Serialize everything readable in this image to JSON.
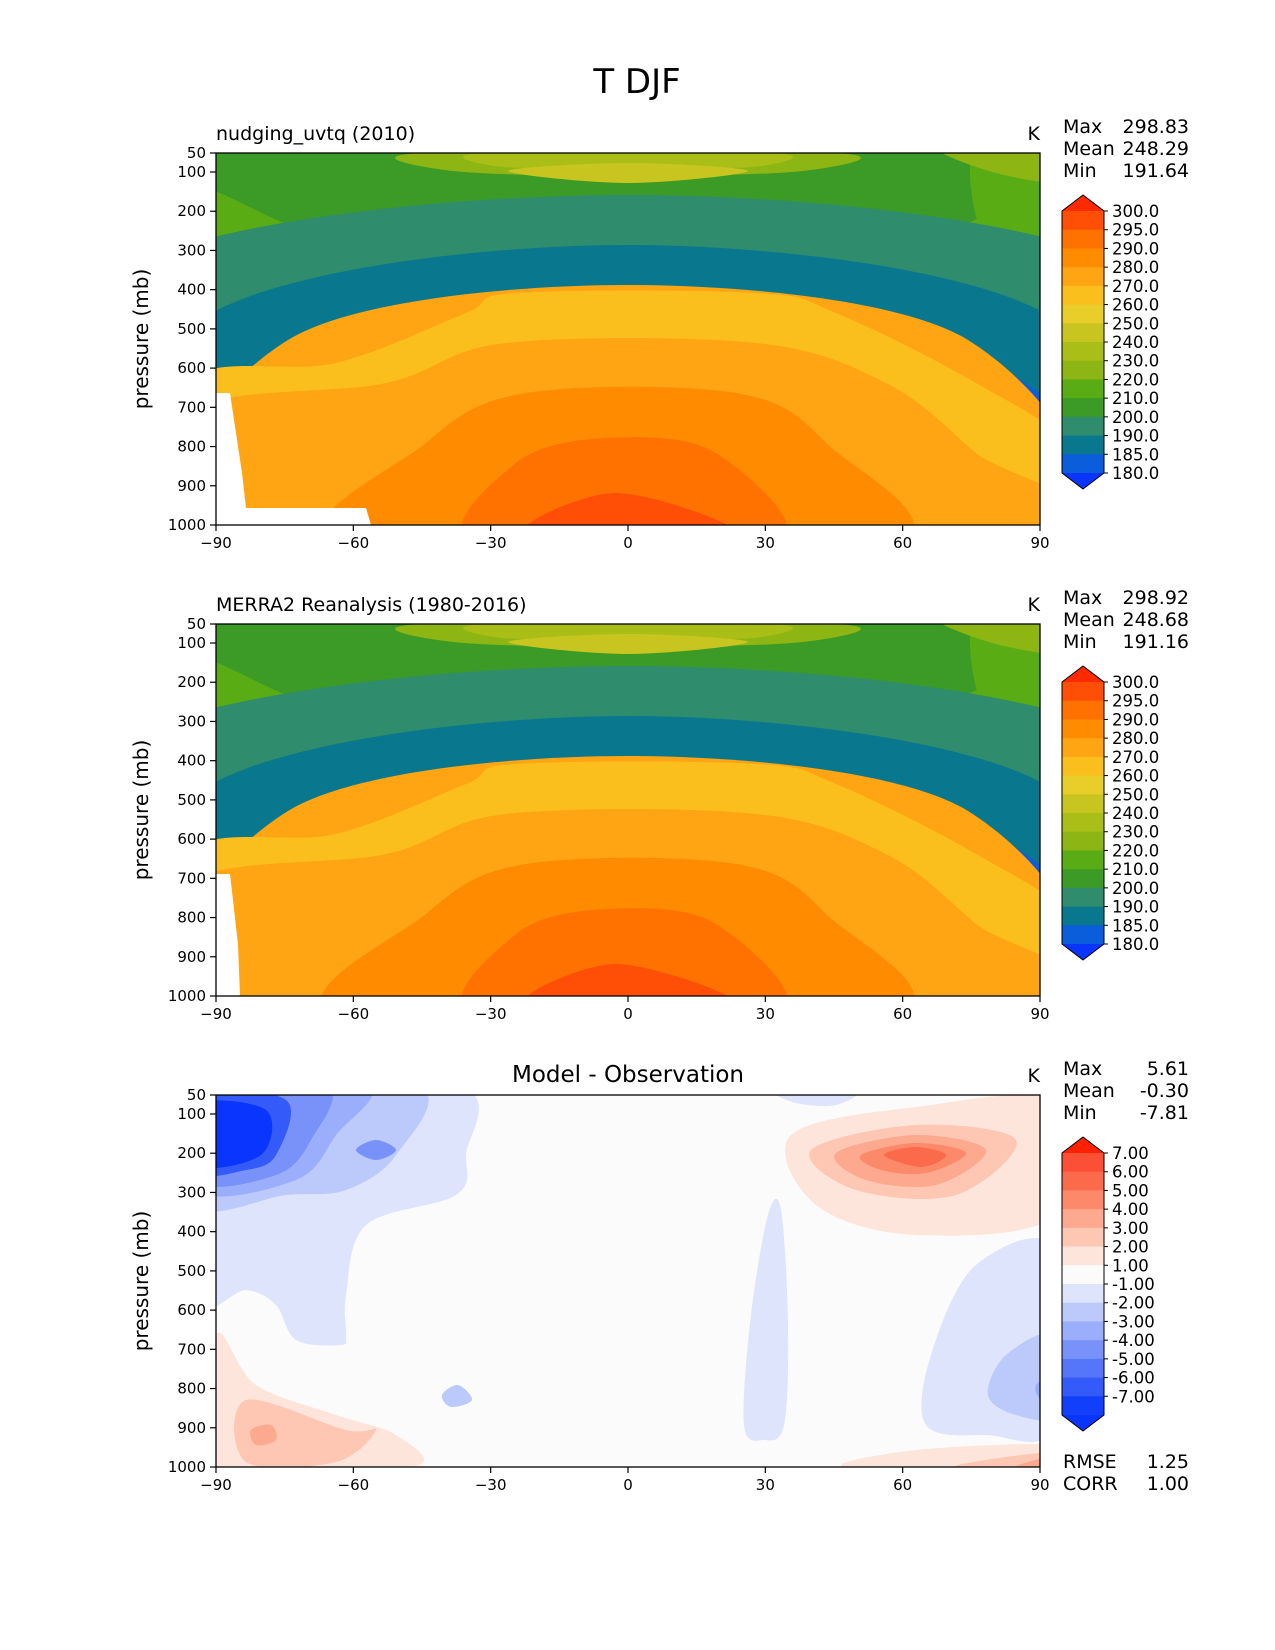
{
  "figure": {
    "title": "T DJF"
  },
  "chart_data": [
    {
      "type": "contour",
      "title": "nudging_uvtq (2010)",
      "units": "K",
      "xlabel": "",
      "ylabel": "pressure (mb)",
      "x_ticks": [
        "−90",
        "−60",
        "−30",
        "0",
        "30",
        "60",
        "90"
      ],
      "y_ticks": [
        "50",
        "100",
        "200",
        "300",
        "400",
        "500",
        "600",
        "700",
        "800",
        "900",
        "1000"
      ],
      "xlim": [
        -90,
        90
      ],
      "ylim": [
        1000,
        50
      ],
      "stats": [
        {
          "label": "Max",
          "value": "298.83"
        },
        {
          "label": "Mean",
          "value": "248.29"
        },
        {
          "label": "Min",
          "value": "191.64"
        }
      ],
      "colorbar": {
        "labels": [
          "300.0",
          "295.0",
          "290.0",
          "280.0",
          "270.0",
          "260.0",
          "250.0",
          "240.0",
          "230.0",
          "220.0",
          "210.0",
          "200.0",
          "190.0",
          "185.0",
          "180.0"
        ],
        "colors": [
          "#ff2a00",
          "#ff4e05",
          "#ff7200",
          "#ff8c00",
          "#ffa413",
          "#fbbf1d",
          "#e9cd28",
          "#c9c520",
          "#a9be16",
          "#8db514",
          "#5aac14",
          "#3b9b26",
          "#2f8d6e",
          "#09788f",
          "#0b5edb",
          "#0a35ff"
        ]
      }
    },
    {
      "type": "contour",
      "title": "MERRA2 Reanalysis (1980-2016)",
      "units": "K",
      "xlabel": "",
      "ylabel": "pressure (mb)",
      "x_ticks": [
        "−90",
        "−60",
        "−30",
        "0",
        "30",
        "60",
        "90"
      ],
      "y_ticks": [
        "50",
        "100",
        "200",
        "300",
        "400",
        "500",
        "600",
        "700",
        "800",
        "900",
        "1000"
      ],
      "xlim": [
        -90,
        90
      ],
      "ylim": [
        1000,
        50
      ],
      "stats": [
        {
          "label": "Max",
          "value": "298.92"
        },
        {
          "label": "Mean",
          "value": "248.68"
        },
        {
          "label": "Min",
          "value": "191.16"
        }
      ],
      "colorbar": {
        "labels": [
          "300.0",
          "295.0",
          "290.0",
          "280.0",
          "270.0",
          "260.0",
          "250.0",
          "240.0",
          "230.0",
          "220.0",
          "210.0",
          "200.0",
          "190.0",
          "185.0",
          "180.0"
        ],
        "colors": [
          "#ff2a00",
          "#ff4e05",
          "#ff7200",
          "#ff8c00",
          "#ffa413",
          "#fbbf1d",
          "#e9cd28",
          "#c9c520",
          "#a9be16",
          "#8db514",
          "#5aac14",
          "#3b9b26",
          "#2f8d6e",
          "#09788f",
          "#0b5edb",
          "#0a35ff"
        ]
      }
    },
    {
      "type": "contour",
      "title": "Model - Observation",
      "units": "K",
      "xlabel": "",
      "ylabel": "pressure (mb)",
      "x_ticks": [
        "−90",
        "−60",
        "−30",
        "0",
        "30",
        "60",
        "90"
      ],
      "y_ticks": [
        "50",
        "100",
        "200",
        "300",
        "400",
        "500",
        "600",
        "700",
        "800",
        "900",
        "1000"
      ],
      "xlim": [
        -90,
        90
      ],
      "ylim": [
        1000,
        50
      ],
      "stats": [
        {
          "label": "Max",
          "value": "5.61"
        },
        {
          "label": "Mean",
          "value": "-0.30"
        },
        {
          "label": "Min",
          "value": "-7.81"
        }
      ],
      "extra_stats": [
        {
          "label": "RMSE",
          "value": "1.25"
        },
        {
          "label": "CORR",
          "value": "1.00"
        }
      ],
      "colorbar": {
        "labels": [
          "7.00",
          "6.00",
          "5.00",
          "4.00",
          "3.00",
          "2.00",
          "1.00",
          "-1.00",
          "-2.00",
          "-3.00",
          "-4.00",
          "-5.00",
          "-6.00",
          "-7.00"
        ],
        "colors": [
          "#ff2200",
          "#fb4f36",
          "#fb6a4a",
          "#fc8a6a",
          "#fca98f",
          "#fdc7b4",
          "#fee5dc",
          "#fbfbfb",
          "#dde4fb",
          "#bcc9fb",
          "#9aaefb",
          "#7892fa",
          "#5676fa",
          "#345bfa",
          "#123ffa",
          "#0a35ff"
        ]
      }
    }
  ]
}
